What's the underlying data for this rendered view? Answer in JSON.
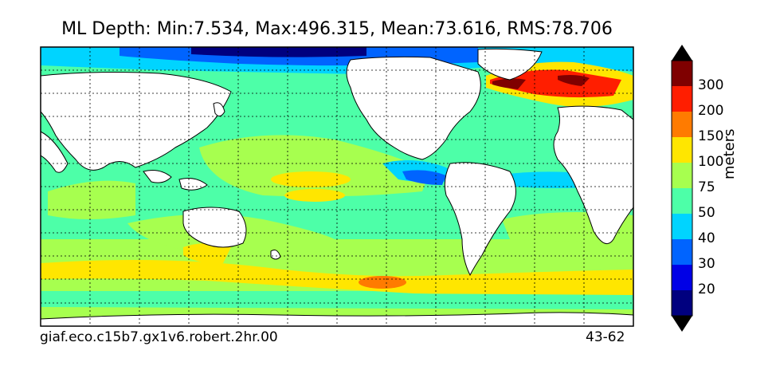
{
  "title": "ML Depth: Min:7.534, Max:496.315, Mean:73.616, RMS:78.706",
  "footer": {
    "run_name": "giaf.eco.c15b7.gx1v6.robert.2hr.00",
    "years": "43-62"
  },
  "colorbar": {
    "unit": "meters",
    "levels": [
      "20",
      "30",
      "40",
      "50",
      "75",
      "100",
      "150",
      "200",
      "300"
    ],
    "colors": [
      "#00007f",
      "#0000e6",
      "#0064ff",
      "#00d4ff",
      "#4dffa8",
      "#a7ff4f",
      "#ffe600",
      "#ff7b00",
      "#ff1e00",
      "#7f0000"
    ]
  },
  "map": {
    "land_color": "#ffffff",
    "coast_color": "#000000",
    "grid": true,
    "grid_style": "dotted"
  }
}
